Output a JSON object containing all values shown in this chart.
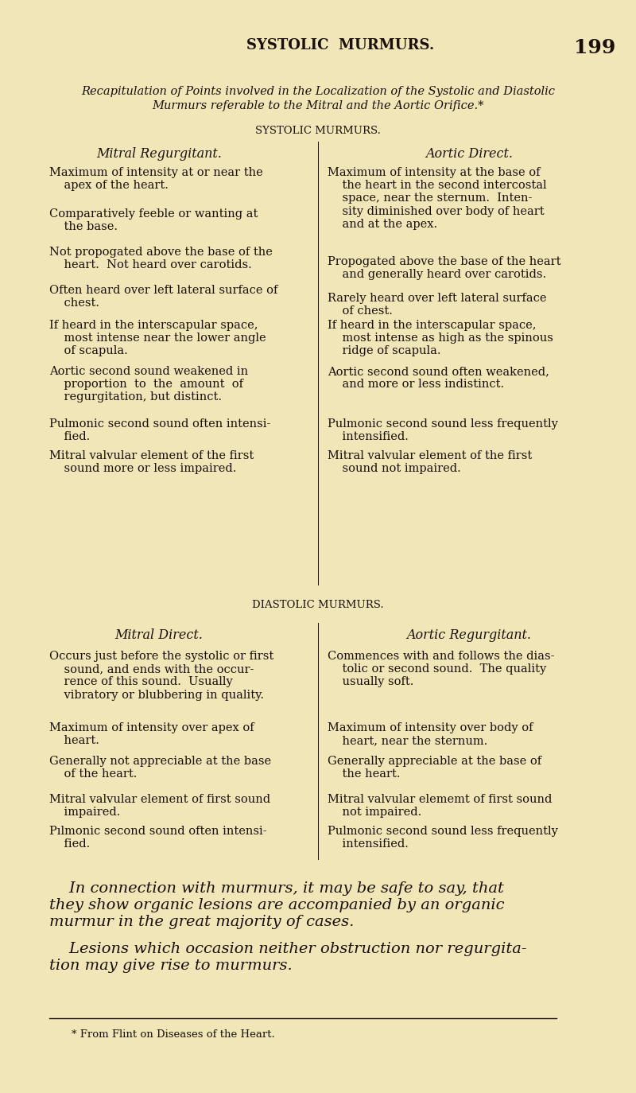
{
  "bg_color": "#f0e6b8",
  "text_color": "#1a1008",
  "page_number": "199",
  "header_title": "SYSTOLIC  MURMURS.",
  "recap_line1": "Recapitulation of Points involved in the Localization of the Systolic and Diastolic",
  "recap_line2": "Murmurs referable to the Mitral and the Aortic Orifice.*",
  "systolic_header": "SYSTOLIC MURMURS.",
  "diastolic_header": "DIASTOLIC MURMURS.",
  "col1_sys_hdr": "Mitral Regurgitant.",
  "col2_sys_hdr": "Aortic Direct.",
  "col1_dia_hdr": "Mitral Direct.",
  "col2_dia_hdr": "Aortic Regurgitant.",
  "footnote": "* From Flint on Diseases of the Heart."
}
